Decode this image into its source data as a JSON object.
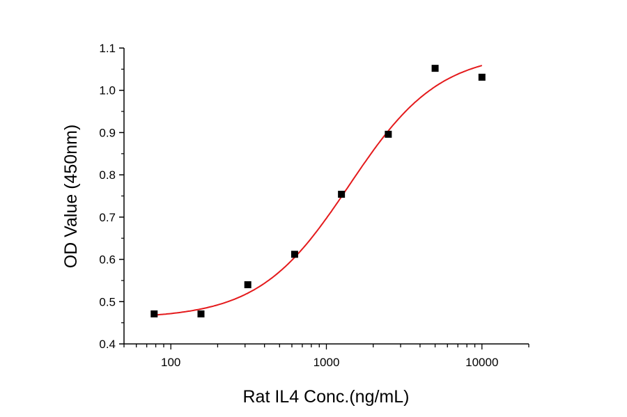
{
  "chart_data": {
    "type": "scatter",
    "title": "",
    "xlabel": "Rat IL4 Conc.(ng/mL)",
    "ylabel": "OD Value (450nm)",
    "xscale": "log",
    "xlim": [
      50,
      20000
    ],
    "ylim": [
      0.4,
      1.1
    ],
    "xticks": [
      100,
      1000,
      10000
    ],
    "xtick_labels": [
      "100",
      "1000",
      "10000"
    ],
    "yticks": [
      0.4,
      0.5,
      0.6,
      0.7,
      0.8,
      0.9,
      1.0,
      1.1
    ],
    "ytick_labels": [
      "0.4",
      "0.5",
      "0.6",
      "0.7",
      "0.8",
      "0.9",
      "1.0",
      "1.1"
    ],
    "grid": false,
    "points": {
      "x": [
        78.125,
        156.25,
        312.5,
        625,
        1250,
        2500,
        5000,
        10000
      ],
      "y": [
        0.471,
        0.471,
        0.54,
        0.612,
        0.754,
        0.896,
        1.052,
        1.031
      ],
      "color": "#000000",
      "marker": "square"
    },
    "fit": {
      "model": "4PL",
      "bottom": 0.46,
      "top": 1.09,
      "ec50": 1400,
      "hill": 1.5,
      "x_range": [
        78.125,
        10000
      ],
      "color": "#e41a1c"
    }
  }
}
